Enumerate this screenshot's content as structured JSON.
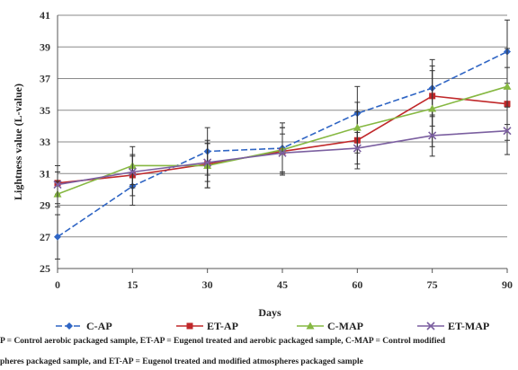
{
  "chart_data": {
    "type": "line",
    "xlabel": "Days",
    "ylabel": "Lightness value (L-value)",
    "x": [
      0,
      15,
      30,
      45,
      60,
      75,
      90
    ],
    "xlim": [
      0,
      90
    ],
    "ylim": [
      25,
      41
    ],
    "yticks": [
      25,
      27,
      29,
      31,
      33,
      35,
      37,
      39,
      41
    ],
    "grid": "horizontal",
    "legend_position": "bottom",
    "series": [
      {
        "name": "C-AP",
        "color": "#2f65c4",
        "marker": "diamond",
        "dash": "dashed",
        "values": [
          27.0,
          30.2,
          32.4,
          32.6,
          34.8,
          36.4,
          38.7
        ],
        "errors": [
          1.4,
          1.2,
          1.5,
          1.6,
          1.7,
          1.8,
          2.0
        ]
      },
      {
        "name": "ET-AP",
        "color": "#c0282a",
        "marker": "square",
        "dash": "solid",
        "values": [
          30.4,
          30.9,
          31.6,
          32.4,
          33.1,
          35.9,
          35.4
        ],
        "errors": [
          0.7,
          1.3,
          1.5,
          1.5,
          1.8,
          1.9,
          2.3
        ]
      },
      {
        "name": "C-MAP",
        "color": "#86b842",
        "marker": "triangle",
        "dash": "solid",
        "values": [
          29.7,
          31.5,
          31.5,
          32.5,
          33.9,
          35.1,
          36.5
        ],
        "errors": [
          0.8,
          1.2,
          1.4,
          1.4,
          1.6,
          2.4,
          2.4
        ]
      },
      {
        "name": "ET-MAP",
        "color": "#7b5fa0",
        "marker": "x",
        "dash": "solid",
        "values": [
          30.3,
          31.1,
          31.7,
          32.3,
          32.6,
          33.4,
          33.7
        ],
        "errors": [
          1.2,
          1.0,
          1.2,
          1.2,
          1.0,
          1.3,
          1.5
        ]
      }
    ]
  },
  "caption": {
    "line1": "P = Control aerobic packaged sample, ET-AP = Eugenol treated and aerobic packaged sample, C-MAP = Control modified",
    "line2": "pheres packaged sample, and ET-AP = Eugenol treated and modified atmospheres packaged sample"
  }
}
